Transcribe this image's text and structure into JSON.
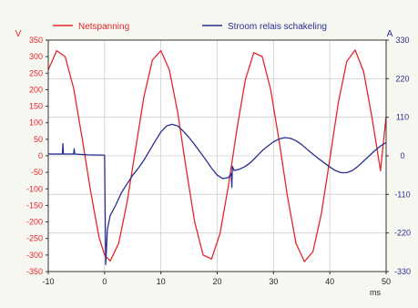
{
  "chart_data": {
    "type": "line",
    "xlabel": "ms",
    "ylabel_left": "V",
    "ylabel_right": "A",
    "xlim": [
      -10,
      50
    ],
    "ylim_left": [
      -350,
      350
    ],
    "ylim_right": [
      -330,
      330
    ],
    "xticks": [
      -10,
      0,
      10,
      20,
      30,
      40,
      50
    ],
    "yticks_left": [
      350,
      300,
      250,
      200,
      150,
      100,
      50,
      0,
      -50,
      -100,
      -150,
      -200,
      -250,
      -300,
      -350
    ],
    "yticks_right": [
      330,
      220,
      110,
      0,
      -110,
      -220,
      -330
    ],
    "grid": true,
    "legend_position": "top",
    "series": [
      {
        "name": "Netspanning",
        "axis": "left",
        "color": "#e3262b",
        "x": [
          -10,
          -8.5,
          -7,
          -5.5,
          -4,
          -2.5,
          -1,
          0,
          1,
          2.5,
          4,
          5.5,
          7,
          8.5,
          10,
          11.5,
          13,
          14.5,
          16,
          17.5,
          19,
          20.5,
          22,
          23.5,
          25,
          26.5,
          28,
          29.5,
          31,
          32.5,
          34,
          35.5,
          37,
          38.5,
          40,
          41.5,
          43,
          44.5,
          46,
          47.5,
          49,
          50
        ],
        "values": [
          260,
          318,
          300,
          205,
          55,
          -105,
          -245,
          -300,
          -318,
          -265,
          -140,
          20,
          180,
          290,
          318,
          260,
          130,
          -40,
          -200,
          -300,
          -312,
          -235,
          -90,
          80,
          230,
          312,
          300,
          200,
          45,
          -125,
          -265,
          -320,
          -290,
          -175,
          -10,
          160,
          285,
          320,
          255,
          115,
          -45,
          120
        ]
      },
      {
        "name": "Stroom relais schakeling",
        "axis": "right",
        "color": "#2a2f8f",
        "x": [
          -10,
          -7.5,
          -7.4,
          -7.3,
          -5.5,
          -5.4,
          -5.3,
          -3,
          0,
          0.2,
          0.5,
          1,
          2,
          3,
          4,
          5,
          6,
          7,
          8,
          9,
          10,
          11,
          12,
          13,
          14,
          15,
          16,
          17,
          18,
          19,
          20,
          21,
          22,
          22.5,
          22.6,
          22.7,
          23,
          24,
          25,
          26,
          27,
          28,
          29,
          30,
          31,
          32,
          33,
          34,
          35,
          36,
          37,
          38,
          39,
          40,
          41,
          42,
          43,
          44,
          45,
          46,
          47,
          48,
          49,
          50
        ],
        "values": [
          5,
          5,
          35,
          5,
          5,
          20,
          5,
          3,
          2,
          -310,
          -210,
          -170,
          -140,
          -105,
          -80,
          -55,
          -35,
          -12,
          15,
          42,
          68,
          85,
          90,
          85,
          70,
          52,
          32,
          10,
          -12,
          -35,
          -55,
          -65,
          -62,
          -50,
          -90,
          -30,
          -42,
          -38,
          -30,
          -18,
          -2,
          15,
          28,
          40,
          48,
          52,
          50,
          43,
          32,
          18,
          5,
          -8,
          -20,
          -32,
          -42,
          -48,
          -48,
          -42,
          -30,
          -15,
          0,
          15,
          28,
          38
        ]
      }
    ]
  }
}
